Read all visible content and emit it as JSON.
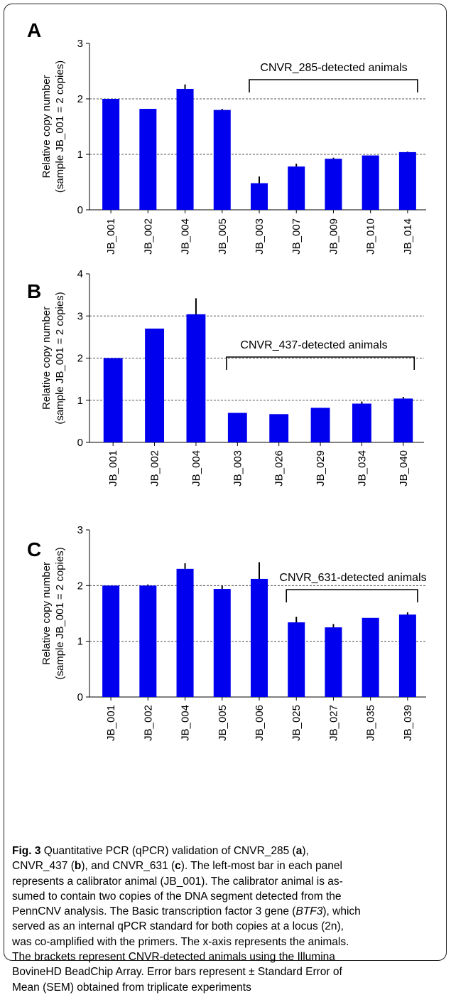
{
  "chart_data": [
    {
      "type": "bar",
      "panel": "A",
      "ylabel_lines": [
        "Relative copy number",
        "(sample JB_001 = 2 copies)"
      ],
      "ylim": [
        0,
        3
      ],
      "yticks": [
        "0",
        "1",
        "2",
        "3"
      ],
      "grid": "dashed at 1 and 2",
      "bar_color": "#0000ee",
      "categories": [
        "JB_001",
        "JB_002",
        "JB_004",
        "JB_005",
        "JB_003",
        "JB_007",
        "JB_009",
        "JB_010",
        "JB_014"
      ],
      "values": [
        2.0,
        1.82,
        2.18,
        1.8,
        0.48,
        0.78,
        0.92,
        0.98,
        1.04
      ],
      "errors": [
        0.0,
        0.0,
        0.08,
        0.02,
        0.12,
        0.05,
        0.02,
        0.0,
        0.01
      ],
      "bracket": {
        "label": "CNVR_285-detected animals",
        "from": 4,
        "to": 8
      }
    },
    {
      "type": "bar",
      "panel": "B",
      "ylabel_lines": [
        "Relative copy number",
        "(sample JB_001 = 2 copies)"
      ],
      "ylim": [
        0,
        4
      ],
      "yticks": [
        "0",
        "1",
        "2",
        "3",
        "4"
      ],
      "grid": "dashed at 1, 2 and 3",
      "bar_color": "#0000ee",
      "categories": [
        "JB_001",
        "JB_002",
        "JB_004",
        "JB_003",
        "JB_026",
        "JB_029",
        "JB_034",
        "JB_040"
      ],
      "values": [
        2.0,
        2.7,
        3.04,
        0.7,
        0.67,
        0.82,
        0.92,
        1.04
      ],
      "errors": [
        0.0,
        0.0,
        0.38,
        0.0,
        0.0,
        0.0,
        0.05,
        0.04
      ],
      "bracket": {
        "label": "CNVR_437-detected animals",
        "from": 3,
        "to": 7
      }
    },
    {
      "type": "bar",
      "panel": "C",
      "ylabel_lines": [
        "Relative copy number",
        "(sample JB_001 = 2 copies)"
      ],
      "ylim": [
        0,
        3
      ],
      "yticks": [
        "0",
        "1",
        "2",
        "3"
      ],
      "grid": "dashed at 1 and 2",
      "bar_color": "#0000ee",
      "categories": [
        "JB_001",
        "JB_002",
        "JB_004",
        "JB_005",
        "JB_006",
        "JB_025",
        "JB_027",
        "JB_035",
        "JB_039"
      ],
      "values": [
        2.0,
        2.0,
        2.3,
        1.94,
        2.12,
        1.34,
        1.25,
        1.42,
        1.48
      ],
      "errors": [
        0.0,
        0.02,
        0.1,
        0.06,
        0.3,
        0.1,
        0.06,
        0.0,
        0.04
      ],
      "bracket": {
        "label": "CNVR_631-detected animals",
        "from": 5,
        "to": 8
      }
    }
  ],
  "caption": {
    "fig_label": "Fig. 3",
    "segments": [
      {
        "text": " Quantitative PCR (qPCR) validation of CNVR_285 (",
        "style": "normal"
      },
      {
        "text": "a",
        "style": "bold"
      },
      {
        "text": "),",
        "style": "normal"
      },
      {
        "text": "CNVR_437 (",
        "style": "normal",
        "break_before": true
      },
      {
        "text": "b",
        "style": "bold"
      },
      {
        "text": "), and CNVR_631 (",
        "style": "normal"
      },
      {
        "text": "c",
        "style": "bold"
      },
      {
        "text": "). The left-most bar in each panel",
        "style": "normal"
      },
      {
        "text": "represents a calibrator animal (JB_001). The calibrator animal is as-",
        "style": "normal",
        "break_before": true
      },
      {
        "text": "sumed to contain two copies of the DNA segment detected from the",
        "style": "normal",
        "break_before": true
      },
      {
        "text": "PennCNV analysis. The Basic transcription factor 3 gene (",
        "style": "normal",
        "break_before": true
      },
      {
        "text": "BTF3",
        "style": "italic"
      },
      {
        "text": "), which",
        "style": "normal"
      },
      {
        "text": "served as an internal qPCR standard for both copies at a locus (2n),",
        "style": "normal",
        "break_before": true
      },
      {
        "text": "was co-amplified with the primers. The x-axis represents the animals.",
        "style": "normal",
        "break_before": true
      },
      {
        "text": "The brackets represent CNVR-detected animals using the Illumina",
        "style": "normal",
        "break_before": true
      },
      {
        "text": "BovineHD BeadChip Array. Error bars represent ± Standard Error of",
        "style": "normal",
        "break_before": true
      },
      {
        "text": "Mean (SEM) obtained from triplicate experiments",
        "style": "normal",
        "break_before": true
      }
    ]
  }
}
